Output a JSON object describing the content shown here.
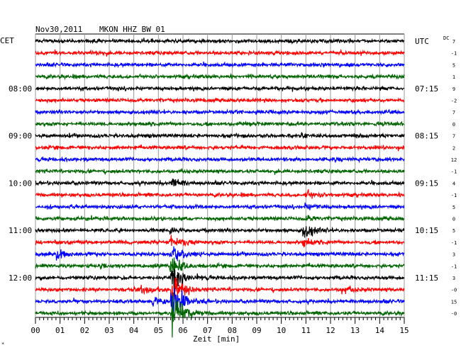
{
  "header": {
    "date": "Nov30,2011",
    "station": "MKON HHZ BW 01"
  },
  "left_tz": "CET",
  "right_tz": "UTC",
  "dc_label": "DC",
  "footer_mark": "*",
  "chart_data": {
    "type": "line",
    "xlabel": "Zeit [min]",
    "x_ticks": [
      "00",
      "01",
      "02",
      "03",
      "04",
      "05",
      "06",
      "07",
      "08",
      "09",
      "10",
      "11",
      "12",
      "13",
      "14",
      "15"
    ],
    "xlim": [
      0,
      15
    ],
    "trace_count": 24,
    "trace_colors": [
      "#000000",
      "#ff0000",
      "#0000ff",
      "#006400"
    ],
    "left_hour_labels": [
      {
        "trace": 4,
        "text": "08:00"
      },
      {
        "trace": 8,
        "text": "09:00"
      },
      {
        "trace": 12,
        "text": "10:00"
      },
      {
        "trace": 16,
        "text": "11:00"
      },
      {
        "trace": 20,
        "text": "12:00"
      }
    ],
    "right_hour_labels": [
      {
        "trace": 0,
        "text": "UTC"
      },
      {
        "trace": 4,
        "text": "07:15"
      },
      {
        "trace": 8,
        "text": "08:15"
      },
      {
        "trace": 12,
        "text": "09:15"
      },
      {
        "trace": 16,
        "text": "10:15"
      },
      {
        "trace": 20,
        "text": "11:15"
      }
    ],
    "dc_offsets": [
      "7",
      "-1",
      "5",
      "1",
      "9",
      "-2",
      "7",
      "0",
      "7",
      "2",
      "12",
      "-1",
      "4",
      "-1",
      "5",
      "0",
      "5",
      "-1",
      "3",
      "-1",
      "3",
      "-0",
      "15",
      "-0"
    ],
    "events": [
      {
        "trace": 12,
        "minute": 5.55,
        "amplitude": 0.9
      },
      {
        "trace": 13,
        "minute": 11.0,
        "amplitude": 0.6
      },
      {
        "trace": 14,
        "minute": 11.0,
        "amplitude": 0.5
      },
      {
        "trace": 15,
        "minute": 11.0,
        "amplitude": 0.5
      },
      {
        "trace": 16,
        "minute": 10.9,
        "amplitude": 1.5
      },
      {
        "trace": 17,
        "minute": 10.9,
        "amplitude": 0.8
      },
      {
        "trace": 18,
        "minute": 0.9,
        "amplitude": 0.8
      },
      {
        "trace": 16,
        "minute": 5.5,
        "amplitude": 0.6
      },
      {
        "trace": 17,
        "minute": 5.5,
        "amplitude": 1.0
      },
      {
        "trace": 18,
        "minute": 5.5,
        "amplitude": 1.5
      },
      {
        "trace": 19,
        "minute": 5.5,
        "amplitude": 2.0
      },
      {
        "trace": 20,
        "minute": 5.55,
        "amplitude": 2.5
      },
      {
        "trace": 21,
        "minute": 5.55,
        "amplitude": 3.0
      },
      {
        "trace": 22,
        "minute": 5.55,
        "amplitude": 4.5
      },
      {
        "trace": 23,
        "minute": 5.6,
        "amplitude": 4.0
      },
      {
        "trace": 21,
        "minute": 4.35,
        "amplitude": 0.8
      },
      {
        "trace": 21,
        "minute": 12.5,
        "amplitude": 0.6
      },
      {
        "trace": 22,
        "minute": 4.8,
        "amplitude": 0.7
      }
    ]
  }
}
